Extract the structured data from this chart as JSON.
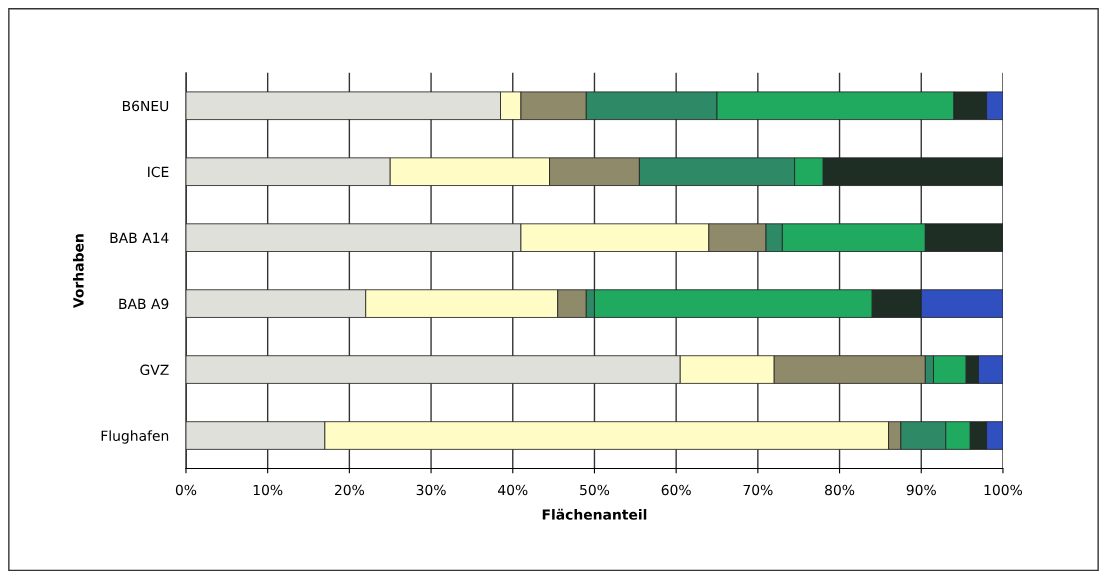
{
  "chart_data": {
    "type": "bar",
    "orientation": "horizontal",
    "stacked": true,
    "xlabel": "Flächenanteil",
    "ylabel": "Vorhaben",
    "categories": [
      "B6NEU",
      "ICE",
      "BAB A14",
      "BAB A9",
      "GVZ",
      "Flughafen"
    ],
    "series": [
      {
        "color": "#e0e0da",
        "values": [
          38.5,
          25,
          41,
          22,
          60.5,
          17
        ]
      },
      {
        "color": "#fffcc6",
        "values": [
          2.5,
          19.5,
          23,
          23.5,
          11.5,
          69
        ]
      },
      {
        "color": "#8f8a6a",
        "values": [
          8,
          11,
          7,
          3.5,
          18.5,
          1.5
        ]
      },
      {
        "color": "#2e8a66",
        "values": [
          16,
          19,
          2,
          1,
          1,
          5.5
        ]
      },
      {
        "color": "#1faa60",
        "values": [
          29,
          3.5,
          17.5,
          34,
          4,
          3
        ]
      },
      {
        "color": "#1e2e24",
        "values": [
          4,
          22,
          9.5,
          6,
          1.5,
          2
        ]
      },
      {
        "color": "#3050c0",
        "values": [
          2,
          null,
          null,
          10,
          3,
          2
        ]
      }
    ],
    "xlim": [
      0,
      100
    ],
    "xticks": [
      {
        "value": 0,
        "label": "0%"
      },
      {
        "value": 10,
        "label": "10%"
      },
      {
        "value": 20,
        "label": "20%"
      },
      {
        "value": 30,
        "label": "30%"
      },
      {
        "value": 40,
        "label": "40%"
      },
      {
        "value": 50,
        "label": "50%"
      },
      {
        "value": 60,
        "label": "60%"
      },
      {
        "value": 70,
        "label": "70%"
      },
      {
        "value": 80,
        "label": "80%"
      },
      {
        "value": 90,
        "label": "90%"
      },
      {
        "value": 100,
        "label": "100%"
      }
    ],
    "grid": "x"
  }
}
